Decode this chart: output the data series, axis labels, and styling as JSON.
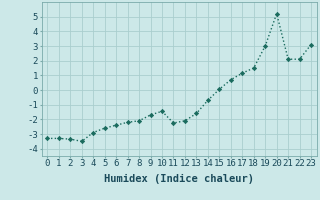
{
  "x": [
    0,
    1,
    2,
    3,
    4,
    5,
    6,
    7,
    8,
    9,
    10,
    11,
    12,
    13,
    14,
    15,
    16,
    17,
    18,
    19,
    20,
    21,
    22,
    23
  ],
  "y": [
    -3.3,
    -3.3,
    -3.35,
    -3.5,
    -2.9,
    -2.6,
    -2.4,
    -2.2,
    -2.1,
    -1.7,
    -1.45,
    -2.25,
    -2.1,
    -1.6,
    -0.7,
    0.05,
    0.7,
    1.15,
    1.5,
    3.0,
    5.2,
    2.1,
    2.1,
    3.1
  ],
  "line_color": "#1a6b5e",
  "marker": "D",
  "marker_size": 2.2,
  "linewidth": 1.0,
  "background_color": "#cce8e8",
  "grid_color": "#aacece",
  "xlabel": "Humidex (Indice chaleur)",
  "xlim": [
    -0.5,
    23.5
  ],
  "ylim": [
    -4.5,
    6.0
  ],
  "yticks": [
    -4,
    -3,
    -2,
    -1,
    0,
    1,
    2,
    3,
    4,
    5
  ],
  "xticks": [
    0,
    1,
    2,
    3,
    4,
    5,
    6,
    7,
    8,
    9,
    10,
    11,
    12,
    13,
    14,
    15,
    16,
    17,
    18,
    19,
    20,
    21,
    22,
    23
  ],
  "xlabel_fontsize": 7.5,
  "tick_fontsize": 6.5,
  "label_color": "#1a4a5a"
}
